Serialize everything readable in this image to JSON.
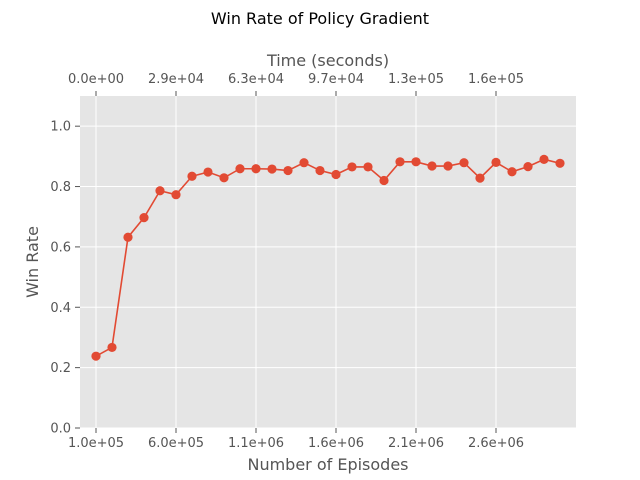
{
  "chart_data": {
    "type": "line",
    "title": "Win Rate of Policy Gradient",
    "xlabel": "Number of Episodes",
    "ylabel": "Win Rate",
    "top_xlabel": "Time (seconds)",
    "ylim": [
      0.0,
      1.1
    ],
    "xlim": [
      0,
      30
    ],
    "grid": true,
    "background": "#e5e5e5",
    "grid_color": "#ffffff",
    "series_color": "#e24a33",
    "bottom_ticks": [
      "1.0e+05",
      "6.0e+05",
      "1.1e+06",
      "1.6e+06",
      "2.1e+06",
      "2.6e+06"
    ],
    "top_ticks": [
      "0.0e+00",
      "2.9e+04",
      "6.3e+04",
      "9.7e+04",
      "1.3e+05",
      "1.6e+05"
    ],
    "y_ticks": [
      "0.0",
      "0.2",
      "0.4",
      "0.6",
      "0.8",
      "1.0"
    ],
    "x": [
      100000,
      200000,
      300000,
      400000,
      500000,
      600000,
      700000,
      800000,
      900000,
      1000000,
      1100000,
      1200000,
      1300000,
      1400000,
      1500000,
      1600000,
      1700000,
      1800000,
      1900000,
      2000000,
      2100000,
      2200000,
      2300000,
      2400000,
      2500000,
      2600000,
      2700000,
      2800000,
      2900000,
      3000000
    ],
    "series": [
      {
        "values": [
          0.238,
          0.267,
          0.632,
          0.697,
          0.786,
          0.773,
          0.834,
          0.848,
          0.829,
          0.859,
          0.859,
          0.858,
          0.853,
          0.879,
          0.853,
          0.84,
          0.865,
          0.865,
          0.82,
          0.882,
          0.882,
          0.868,
          0.868,
          0.879,
          0.828,
          0.88,
          0.849,
          0.866,
          0.89,
          0.877
        ]
      }
    ]
  }
}
